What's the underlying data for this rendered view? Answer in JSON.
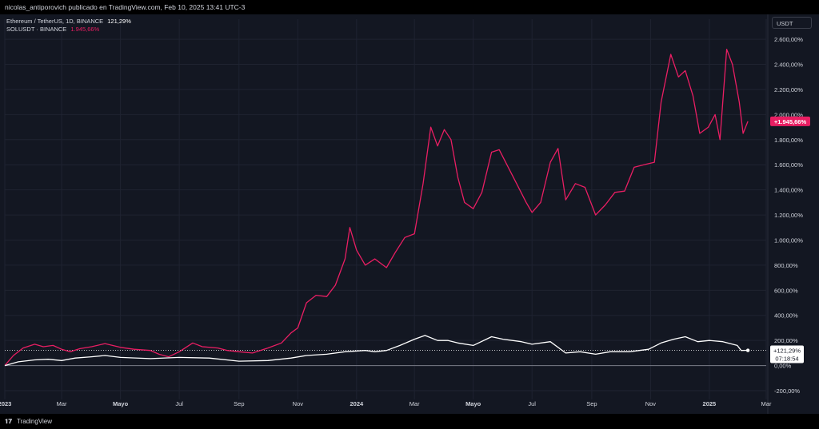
{
  "header": {
    "publisher_line": "nicolas_antiporovich publicado en TradingView.com, Feb 10, 2025 13:41 UTC-3"
  },
  "legend": {
    "series1_name": "Ethereum / TetherUS, 1D, BINANCE",
    "series1_value": "121,29%",
    "series2_name": "SOLUSDT · BINANCE",
    "series2_value": "1.945,66%"
  },
  "toolbar": {
    "currency_label": "USDT"
  },
  "footer": {
    "logo_glyph": "𝟏𝟕",
    "brand": "TradingView"
  },
  "badges": {
    "sol_value": "+1.945,66%",
    "eth_value": "+121,29%",
    "eth_countdown": "07:18:54"
  },
  "colors": {
    "background": "#131722",
    "grid": "#1f2331",
    "sol_line": "#e91e63",
    "eth_line": "#ffffff",
    "axis_text": "#d1d4dc"
  },
  "chart_data": {
    "type": "line",
    "y_unit": "%",
    "y_ticks": [
      -200,
      0,
      200,
      400,
      600,
      800,
      1000,
      1200,
      1400,
      1600,
      1800,
      2000,
      2200,
      2400,
      2600
    ],
    "y_tick_labels": [
      "-200,00%",
      "0,00%",
      "200,00%",
      "400,00%",
      "600,00%",
      "800,00%",
      "1.000,00%",
      "1.200,00%",
      "1.400,00%",
      "1.600,00%",
      "1.800,00%",
      "2.000,00%",
      "2.200,00%",
      "2.400,00%",
      "2.600,00%"
    ],
    "ylim": [
      -270,
      2760
    ],
    "xlim": [
      "2023-01-01",
      "2025-03-01"
    ],
    "x_ticks": [
      {
        "date": "2023-01-01",
        "label": "2023"
      },
      {
        "date": "2023-03-01",
        "label": "Mar"
      },
      {
        "date": "2023-05-01",
        "label": "Mayo"
      },
      {
        "date": "2023-07-01",
        "label": "Jul"
      },
      {
        "date": "2023-09-01",
        "label": "Sep"
      },
      {
        "date": "2023-11-01",
        "label": "Nov"
      },
      {
        "date": "2024-01-01",
        "label": "2024"
      },
      {
        "date": "2024-03-01",
        "label": "Mar"
      },
      {
        "date": "2024-05-01",
        "label": "Mayo"
      },
      {
        "date": "2024-07-01",
        "label": "Jul"
      },
      {
        "date": "2024-09-01",
        "label": "Sep"
      },
      {
        "date": "2024-11-01",
        "label": "Nov"
      },
      {
        "date": "2025-01-01",
        "label": "2025"
      },
      {
        "date": "2025-03-01",
        "label": "Mar"
      }
    ],
    "grid": true,
    "series": [
      {
        "name": "SOLUSDT · BINANCE",
        "color": "#e91e63",
        "points": [
          [
            "2023-01-01",
            0
          ],
          [
            "2023-01-10",
            80
          ],
          [
            "2023-01-20",
            140
          ],
          [
            "2023-02-01",
            170
          ],
          [
            "2023-02-10",
            150
          ],
          [
            "2023-02-20",
            160
          ],
          [
            "2023-03-01",
            130
          ],
          [
            "2023-03-10",
            110
          ],
          [
            "2023-03-20",
            135
          ],
          [
            "2023-04-01",
            150
          ],
          [
            "2023-04-15",
            175
          ],
          [
            "2023-05-01",
            145
          ],
          [
            "2023-05-15",
            130
          ],
          [
            "2023-06-01",
            120
          ],
          [
            "2023-06-10",
            90
          ],
          [
            "2023-06-20",
            70
          ],
          [
            "2023-07-01",
            110
          ],
          [
            "2023-07-15",
            180
          ],
          [
            "2023-07-25",
            150
          ],
          [
            "2023-08-10",
            140
          ],
          [
            "2023-08-20",
            120
          ],
          [
            "2023-09-01",
            110
          ],
          [
            "2023-09-15",
            100
          ],
          [
            "2023-10-01",
            140
          ],
          [
            "2023-10-15",
            180
          ],
          [
            "2023-10-25",
            260
          ],
          [
            "2023-11-01",
            300
          ],
          [
            "2023-11-10",
            500
          ],
          [
            "2023-11-20",
            560
          ],
          [
            "2023-12-01",
            550
          ],
          [
            "2023-12-10",
            640
          ],
          [
            "2023-12-20",
            850
          ],
          [
            "2023-12-25",
            1100
          ],
          [
            "2024-01-01",
            920
          ],
          [
            "2024-01-10",
            800
          ],
          [
            "2024-01-20",
            850
          ],
          [
            "2024-02-01",
            780
          ],
          [
            "2024-02-10",
            900
          ],
          [
            "2024-02-20",
            1020
          ],
          [
            "2024-03-01",
            1050
          ],
          [
            "2024-03-10",
            1450
          ],
          [
            "2024-03-18",
            1900
          ],
          [
            "2024-03-25",
            1750
          ],
          [
            "2024-04-01",
            1880
          ],
          [
            "2024-04-08",
            1800
          ],
          [
            "2024-04-15",
            1500
          ],
          [
            "2024-04-22",
            1300
          ],
          [
            "2024-05-01",
            1250
          ],
          [
            "2024-05-10",
            1380
          ],
          [
            "2024-05-20",
            1700
          ],
          [
            "2024-05-28",
            1720
          ],
          [
            "2024-06-05",
            1600
          ],
          [
            "2024-06-15",
            1450
          ],
          [
            "2024-06-25",
            1300
          ],
          [
            "2024-07-01",
            1220
          ],
          [
            "2024-07-10",
            1300
          ],
          [
            "2024-07-20",
            1620
          ],
          [
            "2024-07-28",
            1730
          ],
          [
            "2024-08-05",
            1320
          ],
          [
            "2024-08-15",
            1450
          ],
          [
            "2024-08-25",
            1420
          ],
          [
            "2024-09-05",
            1200
          ],
          [
            "2024-09-15",
            1280
          ],
          [
            "2024-09-25",
            1380
          ],
          [
            "2024-10-05",
            1390
          ],
          [
            "2024-10-15",
            1580
          ],
          [
            "2024-10-25",
            1600
          ],
          [
            "2024-11-05",
            1620
          ],
          [
            "2024-11-12",
            2100
          ],
          [
            "2024-11-22",
            2480
          ],
          [
            "2024-11-30",
            2300
          ],
          [
            "2024-12-07",
            2350
          ],
          [
            "2024-12-15",
            2150
          ],
          [
            "2024-12-22",
            1850
          ],
          [
            "2024-12-31",
            1900
          ],
          [
            "2025-01-07",
            2000
          ],
          [
            "2025-01-12",
            1800
          ],
          [
            "2025-01-19",
            2520
          ],
          [
            "2025-01-25",
            2400
          ],
          [
            "2025-02-01",
            2100
          ],
          [
            "2025-02-05",
            1850
          ],
          [
            "2025-02-10",
            1945.66
          ]
        ]
      },
      {
        "name": "Ethereum / TetherUS, 1D, BINANCE",
        "color": "#ffffff",
        "points": [
          [
            "2023-01-01",
            0
          ],
          [
            "2023-01-15",
            30
          ],
          [
            "2023-02-01",
            45
          ],
          [
            "2023-02-15",
            50
          ],
          [
            "2023-03-01",
            40
          ],
          [
            "2023-03-15",
            60
          ],
          [
            "2023-04-01",
            70
          ],
          [
            "2023-04-15",
            80
          ],
          [
            "2023-05-01",
            65
          ],
          [
            "2023-06-01",
            55
          ],
          [
            "2023-07-01",
            65
          ],
          [
            "2023-08-01",
            60
          ],
          [
            "2023-09-01",
            35
          ],
          [
            "2023-10-01",
            40
          ],
          [
            "2023-10-25",
            60
          ],
          [
            "2023-11-10",
            80
          ],
          [
            "2023-12-01",
            90
          ],
          [
            "2023-12-20",
            110
          ],
          [
            "2024-01-10",
            120
          ],
          [
            "2024-01-20",
            110
          ],
          [
            "2024-02-01",
            120
          ],
          [
            "2024-02-15",
            160
          ],
          [
            "2024-03-01",
            210
          ],
          [
            "2024-03-12",
            240
          ],
          [
            "2024-03-25",
            200
          ],
          [
            "2024-04-05",
            200
          ],
          [
            "2024-04-15",
            180
          ],
          [
            "2024-05-01",
            160
          ],
          [
            "2024-05-20",
            230
          ],
          [
            "2024-06-01",
            210
          ],
          [
            "2024-06-20",
            190
          ],
          [
            "2024-07-01",
            170
          ],
          [
            "2024-07-20",
            190
          ],
          [
            "2024-08-05",
            100
          ],
          [
            "2024-08-20",
            110
          ],
          [
            "2024-09-05",
            90
          ],
          [
            "2024-09-20",
            110
          ],
          [
            "2024-10-10",
            110
          ],
          [
            "2024-10-30",
            130
          ],
          [
            "2024-11-12",
            180
          ],
          [
            "2024-11-25",
            210
          ],
          [
            "2024-12-07",
            230
          ],
          [
            "2024-12-20",
            190
          ],
          [
            "2025-01-01",
            200
          ],
          [
            "2025-01-15",
            190
          ],
          [
            "2025-01-30",
            160
          ],
          [
            "2025-02-03",
            120
          ],
          [
            "2025-02-10",
            121.29
          ]
        ]
      }
    ]
  }
}
